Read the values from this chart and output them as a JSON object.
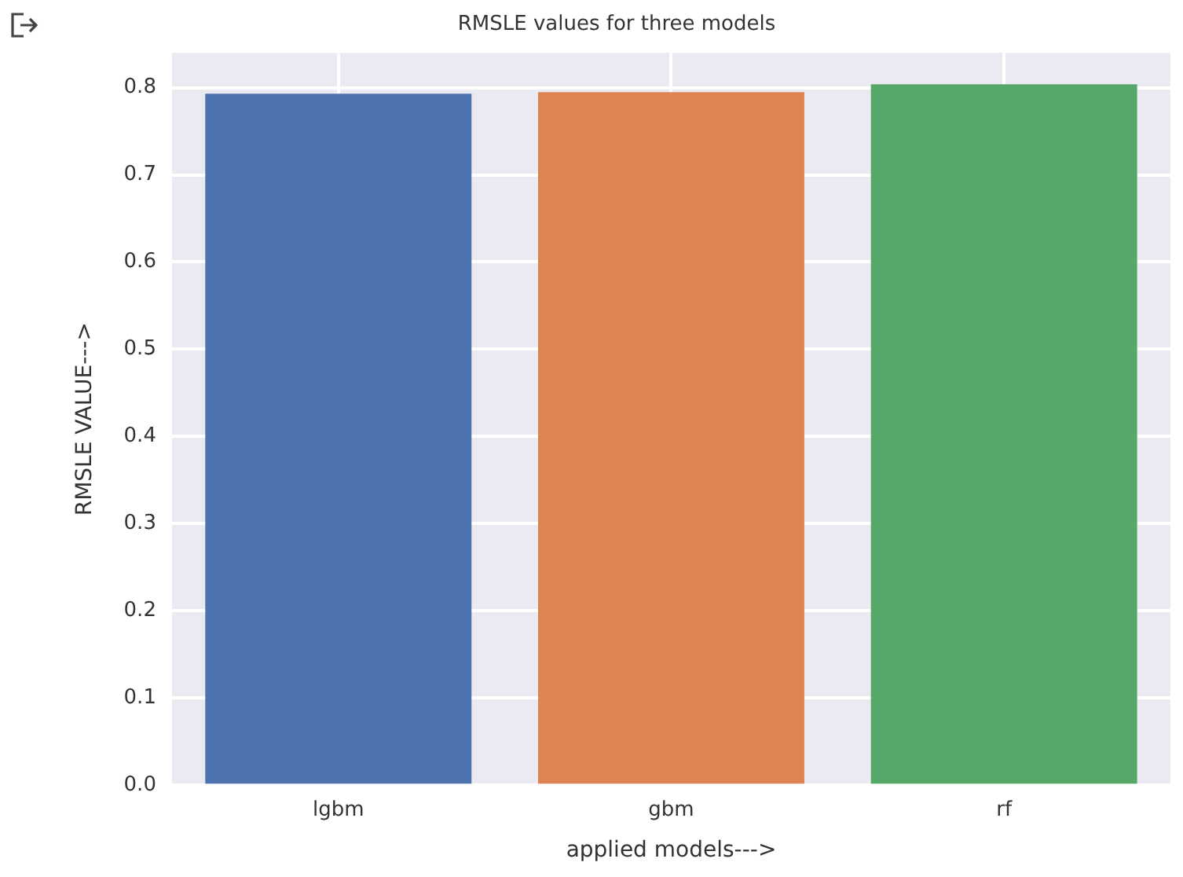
{
  "chart_data": {
    "type": "bar",
    "title": "RMSLE values for three models",
    "xlabel": "applied models--->",
    "ylabel": "RMSLE VALUE--->",
    "categories": [
      "lgbm",
      "gbm",
      "rf"
    ],
    "values": [
      0.793,
      0.795,
      0.804
    ],
    "colors": [
      "#4c72b0",
      "#dd8452",
      "#55a868"
    ],
    "ylim": [
      0,
      0.84
    ],
    "yticks": [
      {
        "value": 0,
        "label": "0.0"
      },
      0.1,
      0.2,
      0.3,
      0.4,
      0.5,
      0.6,
      0.7,
      0.8
    ],
    "grid": true
  }
}
